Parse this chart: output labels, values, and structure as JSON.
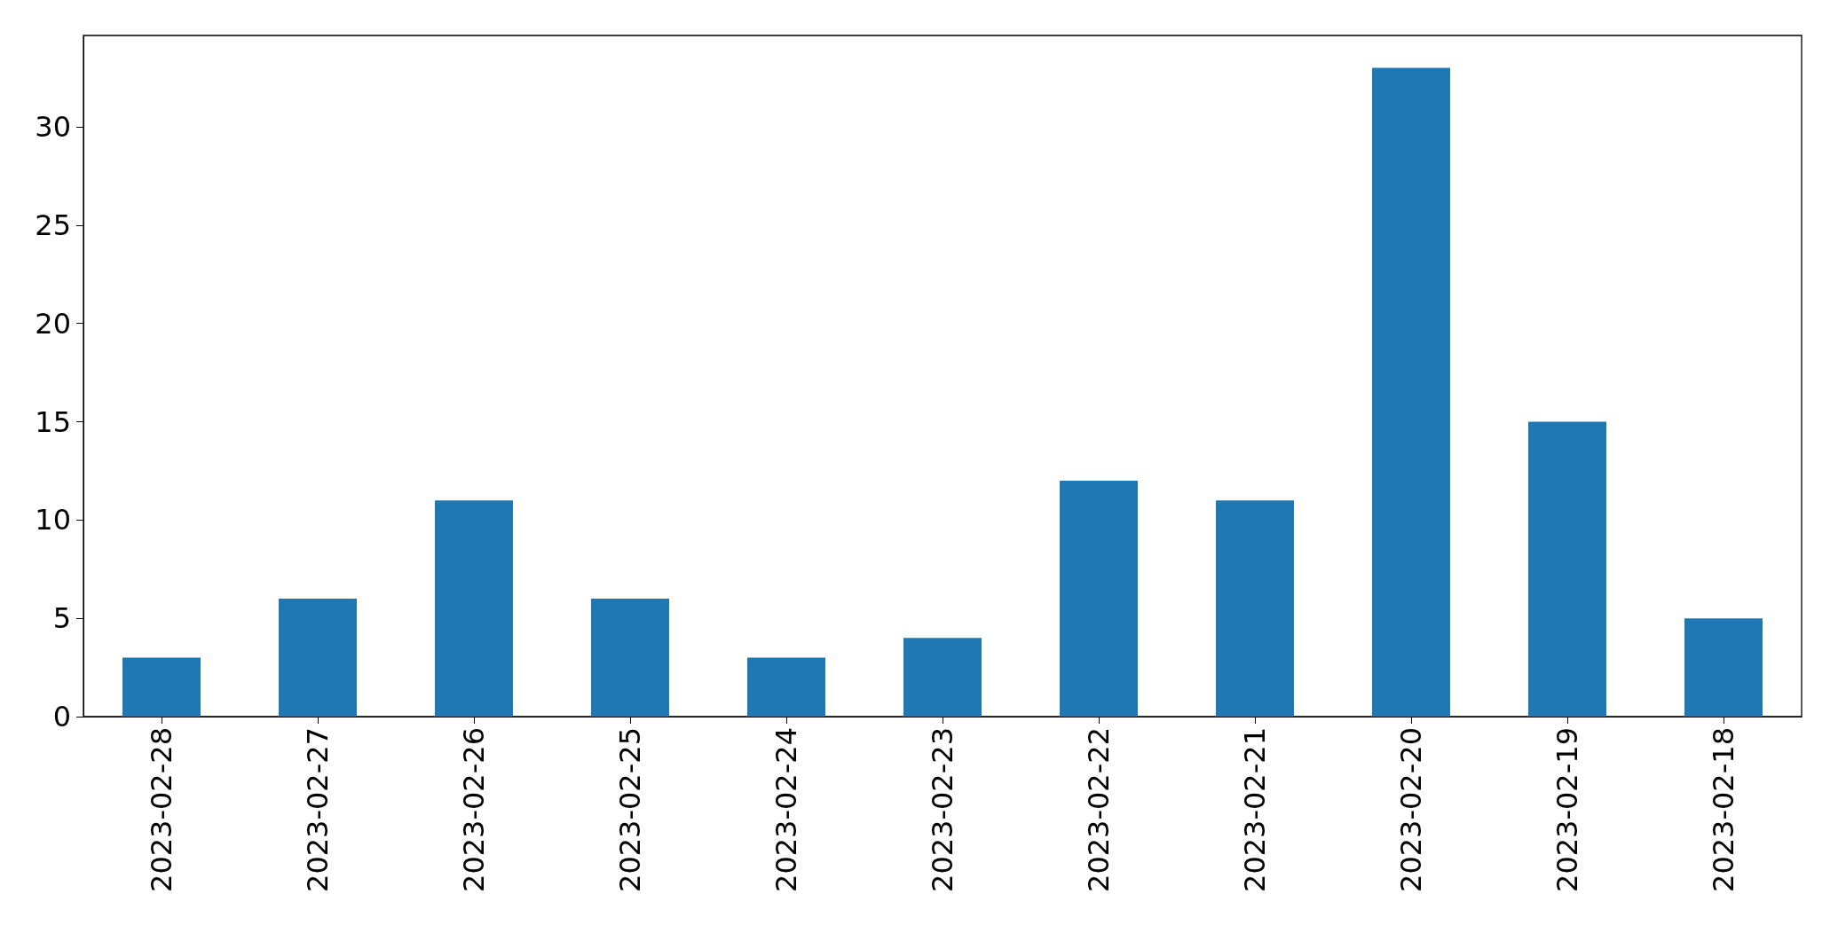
{
  "chart_data": {
    "type": "bar",
    "categories": [
      "2023-02-28",
      "2023-02-27",
      "2023-02-26",
      "2023-02-25",
      "2023-02-24",
      "2023-02-23",
      "2023-02-22",
      "2023-02-21",
      "2023-02-20",
      "2023-02-19",
      "2023-02-18"
    ],
    "values": [
      3,
      6,
      11,
      6,
      3,
      4,
      12,
      11,
      33,
      15,
      5
    ],
    "color": "#1f77b4",
    "ylim": [
      0,
      34.65
    ],
    "yticks": [
      0,
      5,
      10,
      15,
      20,
      25,
      30
    ],
    "grid": false
  }
}
